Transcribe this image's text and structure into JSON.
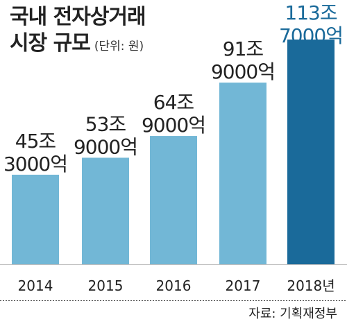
{
  "chart_data": {
    "type": "bar",
    "title_line1": "국내 전자상거래",
    "title_line2": "시장 규모",
    "unit": "(단위: 원)",
    "categories": [
      "2014",
      "2015",
      "2016",
      "2017",
      "2018년"
    ],
    "values": [
      453000,
      539000,
      649000,
      919000,
      1137000
    ],
    "value_units": "억",
    "data_labels": [
      [
        "45조",
        "3000억"
      ],
      [
        "53조",
        "9000억"
      ],
      [
        "64조",
        "9000억"
      ],
      [
        "91조",
        "9000억"
      ],
      [
        "113조",
        "7000억"
      ]
    ],
    "ylim": [
      0,
      1137000
    ],
    "grid": false,
    "colors": {
      "default": "#72b7d6",
      "highlight": "#1a6a9a",
      "highlight_label": "#1a6a9a",
      "label": "#222222"
    },
    "highlight_index": 4
  },
  "source": "자료: 기획재정부"
}
